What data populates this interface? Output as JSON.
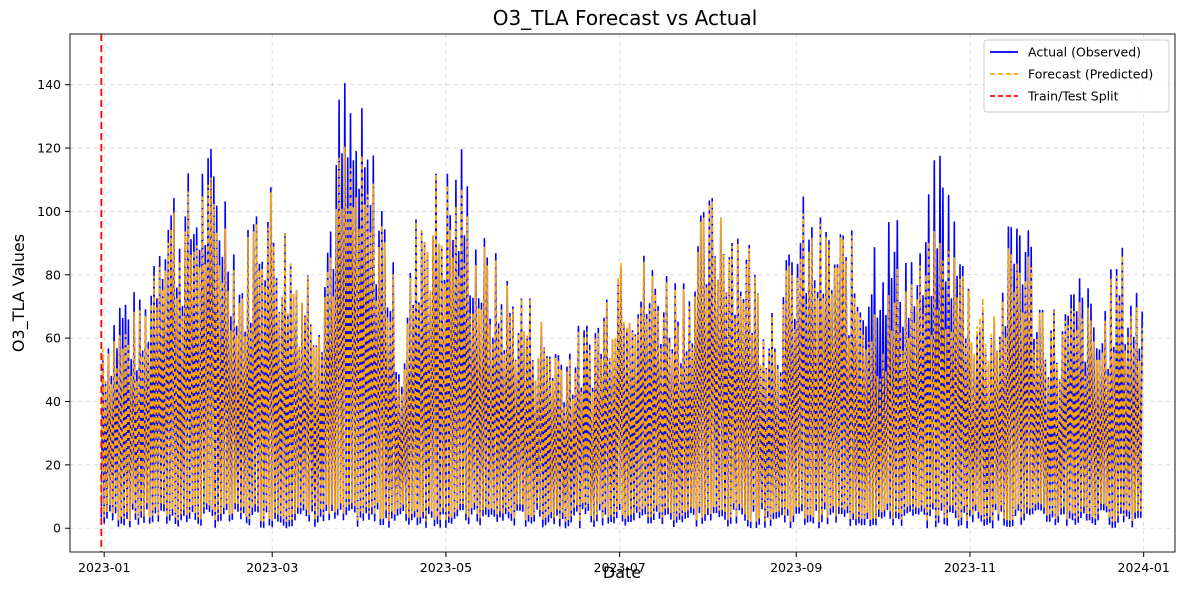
{
  "chart_data": {
    "type": "line",
    "title": "O3_TLA Forecast vs Actual",
    "xlabel": "Date",
    "ylabel": "O3_TLA Values",
    "x_range": [
      "2022-12-20",
      "2024-01-12"
    ],
    "ylim": [
      -7.5,
      156
    ],
    "x_ticks": [
      "2023-01",
      "2023-03",
      "2023-05",
      "2023-07",
      "2023-09",
      "2023-11",
      "2024-01"
    ],
    "y_ticks": [
      0,
      20,
      40,
      60,
      80,
      100,
      120,
      140
    ],
    "grid": true,
    "legend_position": "top-right",
    "split_date": "2022-12-31",
    "series": [
      {
        "name": "Actual (Observed)",
        "color": "#0000ff",
        "style": "solid",
        "x": [
          "2022-12-31",
          "2023-01-07",
          "2023-01-14",
          "2023-01-21",
          "2023-01-28",
          "2023-02-04",
          "2023-02-11",
          "2023-02-18",
          "2023-02-25",
          "2023-03-04",
          "2023-03-11",
          "2023-03-18",
          "2023-03-25",
          "2023-04-01",
          "2023-04-08",
          "2023-04-15",
          "2023-04-22",
          "2023-04-29",
          "2023-05-06",
          "2023-05-13",
          "2023-05-20",
          "2023-05-27",
          "2023-06-03",
          "2023-06-10",
          "2023-06-17",
          "2023-06-24",
          "2023-07-01",
          "2023-07-08",
          "2023-07-15",
          "2023-07-22",
          "2023-07-29",
          "2023-08-05",
          "2023-08-12",
          "2023-08-19",
          "2023-08-26",
          "2023-09-02",
          "2023-09-09",
          "2023-09-16",
          "2023-09-23",
          "2023-09-30",
          "2023-10-07",
          "2023-10-14",
          "2023-10-21",
          "2023-10-28",
          "2023-11-04",
          "2023-11-11",
          "2023-11-18",
          "2023-11-25",
          "2023-12-02",
          "2023-12-09",
          "2023-12-16",
          "2023-12-23",
          "2023-12-31"
        ],
        "peak": [
          68,
          82,
          72,
          121,
          110,
          124,
          122,
          88,
          123,
          103,
          90,
          88,
          149,
          134,
          115,
          63,
          117,
          116,
          125,
          96,
          85,
          80,
          70,
          64,
          65,
          75,
          100,
          90,
          88,
          84,
          100,
          117,
          105,
          82,
          78,
          107,
          100,
          100,
          90,
          105,
          100,
          90,
          128,
          95,
          75,
          80,
          118,
          80,
          70,
          84,
          70,
          92,
          78
        ]
      },
      {
        "name": "Forecast (Predicted)",
        "color": "#ffa500",
        "style": "dashed",
        "x": [
          "2022-12-31",
          "2023-01-07",
          "2023-01-14",
          "2023-01-21",
          "2023-01-28",
          "2023-02-04",
          "2023-02-11",
          "2023-02-18",
          "2023-02-25",
          "2023-03-04",
          "2023-03-11",
          "2023-03-18",
          "2023-03-25",
          "2023-04-01",
          "2023-04-08",
          "2023-04-15",
          "2023-04-22",
          "2023-04-29",
          "2023-05-06",
          "2023-05-13",
          "2023-05-20",
          "2023-05-27",
          "2023-06-03",
          "2023-06-10",
          "2023-06-17",
          "2023-06-24",
          "2023-07-01",
          "2023-07-08",
          "2023-07-15",
          "2023-07-22",
          "2023-07-29",
          "2023-08-05",
          "2023-08-12",
          "2023-08-19",
          "2023-08-26",
          "2023-09-02",
          "2023-09-09",
          "2023-09-16",
          "2023-09-23",
          "2023-09-30",
          "2023-10-07",
          "2023-10-14",
          "2023-10-21",
          "2023-10-28",
          "2023-11-04",
          "2023-11-11",
          "2023-11-18",
          "2023-11-25",
          "2023-12-02",
          "2023-12-09",
          "2023-12-16",
          "2023-12-23",
          "2023-12-31"
        ],
        "peak": [
          70,
          70,
          70,
          116,
          105,
          116,
          111,
          86,
          120,
          103,
          90,
          87,
          127,
          119,
          110,
          60,
          117,
          116,
          112,
          93,
          83,
          80,
          70,
          62,
          63,
          73,
          102,
          88,
          86,
          82,
          98,
          117,
          103,
          82,
          76,
          101,
          98,
          99,
          88,
          72,
          87,
          86,
          98,
          90,
          80,
          79,
          103,
          79,
          70,
          76,
          66,
          90,
          72
        ]
      }
    ]
  },
  "legend": {
    "items": [
      {
        "label": "Actual (Observed)",
        "color": "#0000ff",
        "style": "solid"
      },
      {
        "label": "Forecast (Predicted)",
        "color": "#ffa500",
        "style": "dashed"
      },
      {
        "label": "Train/Test Split",
        "color": "#ff0000",
        "style": "dashed"
      }
    ]
  }
}
